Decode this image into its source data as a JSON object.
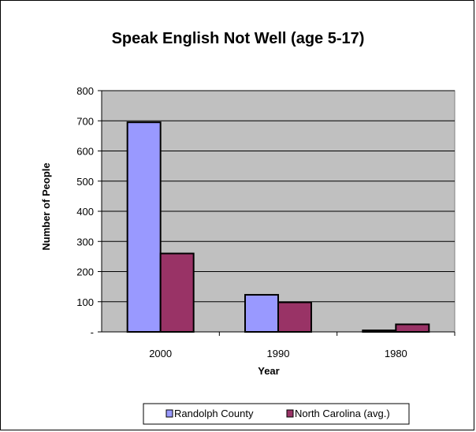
{
  "chart_data": {
    "type": "bar",
    "title": "Speak English Not Well (age 5-17)",
    "xlabel": "Year",
    "ylabel": "Number of People",
    "categories": [
      "2000",
      "1990",
      "1980"
    ],
    "series": [
      {
        "name": "Randolph County",
        "values": [
          695,
          123,
          5
        ],
        "color": "#9999ff"
      },
      {
        "name": "North Carolina (avg.)",
        "values": [
          260,
          98,
          25
        ],
        "color": "#993366"
      }
    ],
    "ylim": [
      0,
      800
    ],
    "yticks": [
      0,
      100,
      200,
      300,
      400,
      500,
      600,
      700,
      800
    ],
    "ytick_labels": [
      "-",
      "100",
      "200",
      "300",
      "400",
      "500",
      "600",
      "700",
      "800"
    ],
    "grid": true,
    "plot_background": "#c0c0c0",
    "legend_position": "bottom"
  }
}
